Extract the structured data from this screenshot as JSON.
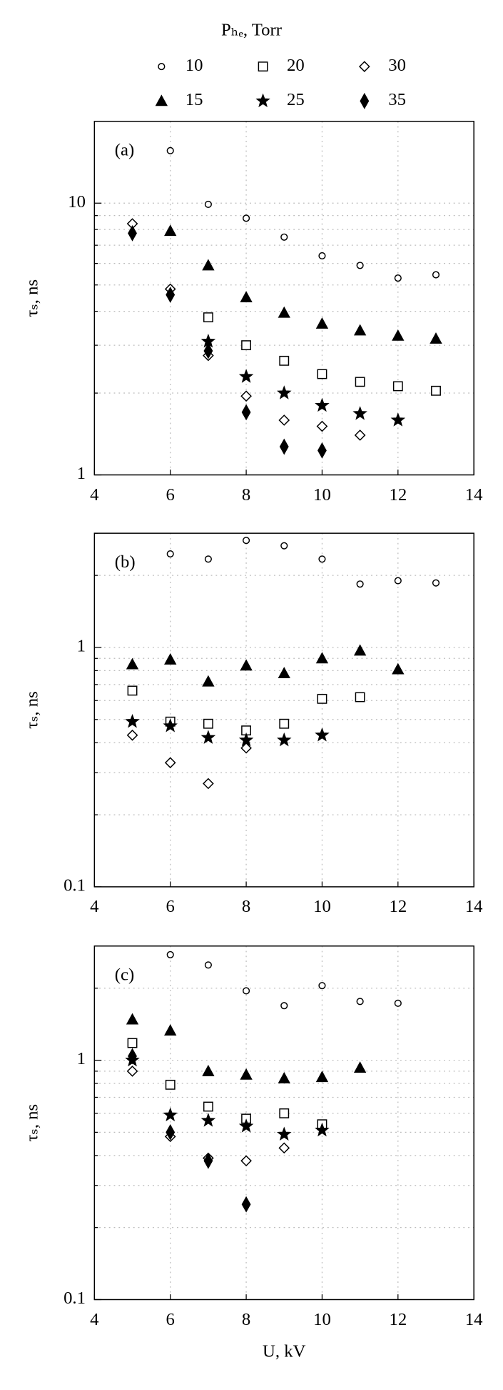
{
  "chart_data": [
    {
      "type": "scatter",
      "annotation": "(a)",
      "legend_title": "Pₕₑ, Torr",
      "y_label": "τₛ, ns",
      "x": [
        5,
        6,
        7,
        8,
        9,
        10,
        11,
        12,
        13
      ],
      "xlim": [
        4,
        14
      ],
      "xticks": [
        4,
        6,
        8,
        10,
        12,
        14
      ],
      "ylim": [
        1,
        20
      ],
      "log_y": true,
      "yticks": [
        1,
        10
      ],
      "minor_yticks": [
        2,
        3,
        4,
        5,
        6,
        7,
        8,
        9,
        20
      ],
      "grid": true,
      "series": [
        {
          "name": "10",
          "marker": "circle",
          "filled": false,
          "color": "#000000",
          "values": [
            null,
            15.6,
            9.9,
            8.8,
            7.5,
            6.4,
            5.9,
            5.3,
            5.45
          ]
        },
        {
          "name": "20",
          "marker": "square",
          "filled": false,
          "color": "#000000",
          "values": [
            null,
            null,
            3.8,
            3.0,
            2.63,
            2.35,
            2.2,
            2.12,
            2.04
          ]
        },
        {
          "name": "30",
          "marker": "diamond",
          "filled": false,
          "color": "#000000",
          "values": [
            8.4,
            4.83,
            2.75,
            1.95,
            1.59,
            1.51,
            1.4,
            null,
            null
          ]
        },
        {
          "name": "15",
          "marker": "triangle",
          "filled": true,
          "color": "#000000",
          "values": [
            null,
            7.9,
            5.9,
            4.5,
            3.95,
            3.6,
            3.4,
            3.25,
            3.17
          ]
        },
        {
          "name": "25",
          "marker": "star",
          "filled": true,
          "color": "#000000",
          "values": [
            null,
            null,
            3.1,
            2.3,
            2.0,
            1.8,
            1.68,
            1.59,
            null
          ]
        },
        {
          "name": "35",
          "marker": "diamond",
          "filled": true,
          "color": "#000000",
          "values": [
            7.75,
            4.6,
            2.86,
            1.7,
            1.27,
            1.23,
            null,
            null,
            null
          ]
        }
      ]
    },
    {
      "type": "scatter",
      "annotation": "(b)",
      "y_label": "τₛ, ns",
      "x": [
        5,
        6,
        7,
        8,
        9,
        10,
        11,
        12,
        13
      ],
      "xlim": [
        4,
        14
      ],
      "xticks": [
        4,
        6,
        8,
        10,
        12,
        14
      ],
      "ylim": [
        0.1,
        3
      ],
      "log_y": true,
      "yticks": [
        0.1,
        1
      ],
      "minor_yticks": [
        0.2,
        0.3,
        0.4,
        0.5,
        0.6,
        0.7,
        0.8,
        0.9,
        2,
        3
      ],
      "grid": true,
      "series": [
        {
          "name": "10",
          "marker": "circle",
          "filled": false,
          "color": "#000000",
          "values": [
            null,
            2.46,
            2.34,
            2.8,
            2.66,
            2.34,
            1.84,
            1.9,
            1.86
          ]
        },
        {
          "name": "20",
          "marker": "square",
          "filled": false,
          "color": "#000000",
          "values": [
            0.66,
            0.49,
            0.48,
            0.45,
            0.48,
            0.61,
            0.62,
            null,
            null
          ]
        },
        {
          "name": "30",
          "marker": "diamond",
          "filled": false,
          "color": "#000000",
          "values": [
            0.43,
            0.33,
            0.27,
            0.38,
            null,
            null,
            null,
            null,
            null
          ]
        },
        {
          "name": "15",
          "marker": "triangle",
          "filled": true,
          "color": "#000000",
          "values": [
            0.85,
            0.89,
            0.72,
            0.84,
            0.78,
            0.9,
            0.97,
            0.81,
            null
          ]
        },
        {
          "name": "25",
          "marker": "star",
          "filled": true,
          "color": "#000000",
          "values": [
            0.49,
            0.47,
            0.42,
            0.41,
            0.41,
            0.43,
            null,
            null,
            null
          ]
        }
      ]
    },
    {
      "type": "scatter",
      "annotation": "(c)",
      "y_label": "τₛ, ns",
      "x_label": "U, kV",
      "x": [
        5,
        6,
        7,
        8,
        9,
        10,
        11,
        12,
        13
      ],
      "xlim": [
        4,
        14
      ],
      "xticks": [
        4,
        6,
        8,
        10,
        12,
        14
      ],
      "ylim": [
        0.1,
        3
      ],
      "log_y": true,
      "yticks": [
        0.1,
        1
      ],
      "minor_yticks": [
        0.2,
        0.3,
        0.4,
        0.5,
        0.6,
        0.7,
        0.8,
        0.9,
        2,
        3
      ],
      "grid": true,
      "series": [
        {
          "name": "10",
          "marker": "circle",
          "filled": false,
          "color": "#000000",
          "values": [
            null,
            2.76,
            2.5,
            1.95,
            1.69,
            2.05,
            1.76,
            1.73,
            null
          ]
        },
        {
          "name": "20",
          "marker": "square",
          "filled": false,
          "color": "#000000",
          "values": [
            1.18,
            0.79,
            0.64,
            0.57,
            0.6,
            0.54,
            null,
            null,
            null
          ]
        },
        {
          "name": "30",
          "marker": "diamond",
          "filled": false,
          "color": "#000000",
          "values": [
            0.9,
            0.48,
            0.39,
            0.38,
            0.43,
            null,
            null,
            null,
            null
          ]
        },
        {
          "name": "15",
          "marker": "triangle",
          "filled": true,
          "color": "#000000",
          "values": [
            1.48,
            1.33,
            0.9,
            0.87,
            0.84,
            0.85,
            0.93,
            null,
            null
          ]
        },
        {
          "name": "25",
          "marker": "star",
          "filled": true,
          "color": "#000000",
          "values": [
            1.0,
            0.59,
            0.56,
            0.53,
            0.49,
            0.51,
            null,
            null,
            null
          ]
        },
        {
          "name": "35",
          "marker": "diamond",
          "filled": true,
          "color": "#000000",
          "values": [
            1.04,
            0.5,
            0.38,
            0.25,
            null,
            null,
            null,
            null,
            null
          ]
        }
      ]
    }
  ]
}
